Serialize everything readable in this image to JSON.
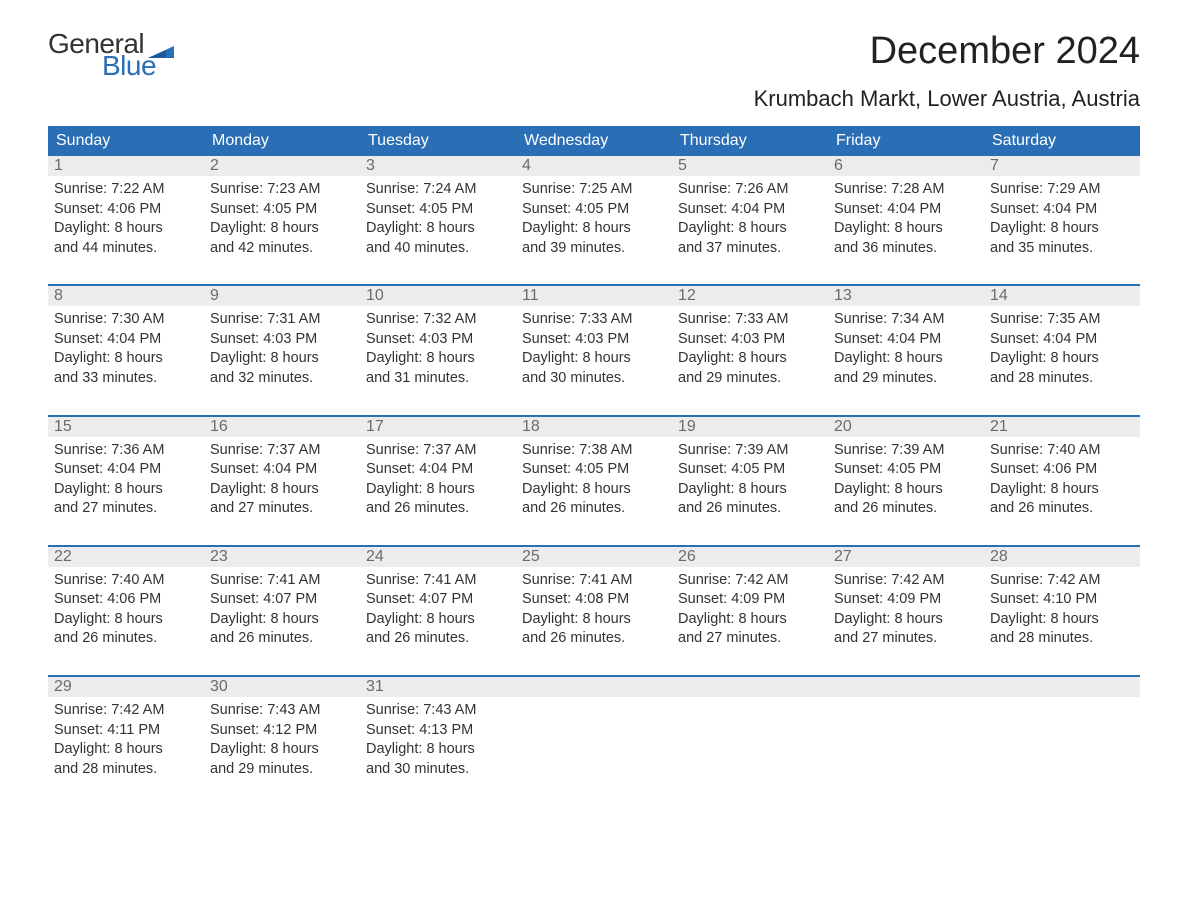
{
  "brand": {
    "word1": "General",
    "word2": "Blue"
  },
  "colors": {
    "brand_blue": "#2a6fb5",
    "header_text": "#ffffff",
    "daynum_bg": "#ececec",
    "daynum_text": "#6b6b6b",
    "body_text": "#333333",
    "week_border": "#2a6fb5",
    "background": "#ffffff"
  },
  "typography": {
    "title_fontsize": 38,
    "location_fontsize": 22,
    "dayheader_fontsize": 16,
    "daynum_fontsize": 16,
    "body_fontsize": 14.5,
    "logo_fontsize": 28
  },
  "title": "December 2024",
  "location": "Krumbach Markt, Lower Austria, Austria",
  "day_headers": [
    "Sunday",
    "Monday",
    "Tuesday",
    "Wednesday",
    "Thursday",
    "Friday",
    "Saturday"
  ],
  "weeks": [
    [
      {
        "n": "1",
        "sr": "Sunrise: 7:22 AM",
        "ss": "Sunset: 4:06 PM",
        "d1": "Daylight: 8 hours",
        "d2": "and 44 minutes."
      },
      {
        "n": "2",
        "sr": "Sunrise: 7:23 AM",
        "ss": "Sunset: 4:05 PM",
        "d1": "Daylight: 8 hours",
        "d2": "and 42 minutes."
      },
      {
        "n": "3",
        "sr": "Sunrise: 7:24 AM",
        "ss": "Sunset: 4:05 PM",
        "d1": "Daylight: 8 hours",
        "d2": "and 40 minutes."
      },
      {
        "n": "4",
        "sr": "Sunrise: 7:25 AM",
        "ss": "Sunset: 4:05 PM",
        "d1": "Daylight: 8 hours",
        "d2": "and 39 minutes."
      },
      {
        "n": "5",
        "sr": "Sunrise: 7:26 AM",
        "ss": "Sunset: 4:04 PM",
        "d1": "Daylight: 8 hours",
        "d2": "and 37 minutes."
      },
      {
        "n": "6",
        "sr": "Sunrise: 7:28 AM",
        "ss": "Sunset: 4:04 PM",
        "d1": "Daylight: 8 hours",
        "d2": "and 36 minutes."
      },
      {
        "n": "7",
        "sr": "Sunrise: 7:29 AM",
        "ss": "Sunset: 4:04 PM",
        "d1": "Daylight: 8 hours",
        "d2": "and 35 minutes."
      }
    ],
    [
      {
        "n": "8",
        "sr": "Sunrise: 7:30 AM",
        "ss": "Sunset: 4:04 PM",
        "d1": "Daylight: 8 hours",
        "d2": "and 33 minutes."
      },
      {
        "n": "9",
        "sr": "Sunrise: 7:31 AM",
        "ss": "Sunset: 4:03 PM",
        "d1": "Daylight: 8 hours",
        "d2": "and 32 minutes."
      },
      {
        "n": "10",
        "sr": "Sunrise: 7:32 AM",
        "ss": "Sunset: 4:03 PM",
        "d1": "Daylight: 8 hours",
        "d2": "and 31 minutes."
      },
      {
        "n": "11",
        "sr": "Sunrise: 7:33 AM",
        "ss": "Sunset: 4:03 PM",
        "d1": "Daylight: 8 hours",
        "d2": "and 30 minutes."
      },
      {
        "n": "12",
        "sr": "Sunrise: 7:33 AM",
        "ss": "Sunset: 4:03 PM",
        "d1": "Daylight: 8 hours",
        "d2": "and 29 minutes."
      },
      {
        "n": "13",
        "sr": "Sunrise: 7:34 AM",
        "ss": "Sunset: 4:04 PM",
        "d1": "Daylight: 8 hours",
        "d2": "and 29 minutes."
      },
      {
        "n": "14",
        "sr": "Sunrise: 7:35 AM",
        "ss": "Sunset: 4:04 PM",
        "d1": "Daylight: 8 hours",
        "d2": "and 28 minutes."
      }
    ],
    [
      {
        "n": "15",
        "sr": "Sunrise: 7:36 AM",
        "ss": "Sunset: 4:04 PM",
        "d1": "Daylight: 8 hours",
        "d2": "and 27 minutes."
      },
      {
        "n": "16",
        "sr": "Sunrise: 7:37 AM",
        "ss": "Sunset: 4:04 PM",
        "d1": "Daylight: 8 hours",
        "d2": "and 27 minutes."
      },
      {
        "n": "17",
        "sr": "Sunrise: 7:37 AM",
        "ss": "Sunset: 4:04 PM",
        "d1": "Daylight: 8 hours",
        "d2": "and 26 minutes."
      },
      {
        "n": "18",
        "sr": "Sunrise: 7:38 AM",
        "ss": "Sunset: 4:05 PM",
        "d1": "Daylight: 8 hours",
        "d2": "and 26 minutes."
      },
      {
        "n": "19",
        "sr": "Sunrise: 7:39 AM",
        "ss": "Sunset: 4:05 PM",
        "d1": "Daylight: 8 hours",
        "d2": "and 26 minutes."
      },
      {
        "n": "20",
        "sr": "Sunrise: 7:39 AM",
        "ss": "Sunset: 4:05 PM",
        "d1": "Daylight: 8 hours",
        "d2": "and 26 minutes."
      },
      {
        "n": "21",
        "sr": "Sunrise: 7:40 AM",
        "ss": "Sunset: 4:06 PM",
        "d1": "Daylight: 8 hours",
        "d2": "and 26 minutes."
      }
    ],
    [
      {
        "n": "22",
        "sr": "Sunrise: 7:40 AM",
        "ss": "Sunset: 4:06 PM",
        "d1": "Daylight: 8 hours",
        "d2": "and 26 minutes."
      },
      {
        "n": "23",
        "sr": "Sunrise: 7:41 AM",
        "ss": "Sunset: 4:07 PM",
        "d1": "Daylight: 8 hours",
        "d2": "and 26 minutes."
      },
      {
        "n": "24",
        "sr": "Sunrise: 7:41 AM",
        "ss": "Sunset: 4:07 PM",
        "d1": "Daylight: 8 hours",
        "d2": "and 26 minutes."
      },
      {
        "n": "25",
        "sr": "Sunrise: 7:41 AM",
        "ss": "Sunset: 4:08 PM",
        "d1": "Daylight: 8 hours",
        "d2": "and 26 minutes."
      },
      {
        "n": "26",
        "sr": "Sunrise: 7:42 AM",
        "ss": "Sunset: 4:09 PM",
        "d1": "Daylight: 8 hours",
        "d2": "and 27 minutes."
      },
      {
        "n": "27",
        "sr": "Sunrise: 7:42 AM",
        "ss": "Sunset: 4:09 PM",
        "d1": "Daylight: 8 hours",
        "d2": "and 27 minutes."
      },
      {
        "n": "28",
        "sr": "Sunrise: 7:42 AM",
        "ss": "Sunset: 4:10 PM",
        "d1": "Daylight: 8 hours",
        "d2": "and 28 minutes."
      }
    ],
    [
      {
        "n": "29",
        "sr": "Sunrise: 7:42 AM",
        "ss": "Sunset: 4:11 PM",
        "d1": "Daylight: 8 hours",
        "d2": "and 28 minutes."
      },
      {
        "n": "30",
        "sr": "Sunrise: 7:43 AM",
        "ss": "Sunset: 4:12 PM",
        "d1": "Daylight: 8 hours",
        "d2": "and 29 minutes."
      },
      {
        "n": "31",
        "sr": "Sunrise: 7:43 AM",
        "ss": "Sunset: 4:13 PM",
        "d1": "Daylight: 8 hours",
        "d2": "and 30 minutes."
      },
      {
        "n": "",
        "sr": "",
        "ss": "",
        "d1": "",
        "d2": ""
      },
      {
        "n": "",
        "sr": "",
        "ss": "",
        "d1": "",
        "d2": ""
      },
      {
        "n": "",
        "sr": "",
        "ss": "",
        "d1": "",
        "d2": ""
      },
      {
        "n": "",
        "sr": "",
        "ss": "",
        "d1": "",
        "d2": ""
      }
    ]
  ]
}
